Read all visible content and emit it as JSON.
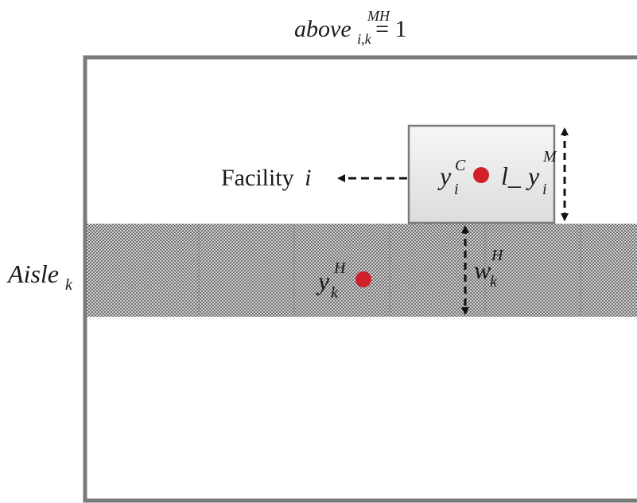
{
  "title": {
    "base": "above",
    "superscript": "MH",
    "subscript": "i,k",
    "equals": "= 1"
  },
  "facility": {
    "label_text": "Facility",
    "label_var": "i",
    "center_var": "y",
    "center_sub": "i",
    "center_sup": "C",
    "length_prefix": "l_",
    "length_var": "y",
    "length_sub": "i",
    "length_sup": "M"
  },
  "aisle": {
    "label_base": "Aisle",
    "label_sub": "k",
    "center_var": "y",
    "center_sub": "k",
    "center_sup": "H",
    "width_var": "w",
    "width_sub": "k",
    "width_sup": "H"
  },
  "colors": {
    "frame": "#7a7a7a",
    "facility_fill": "#e8e8e8",
    "facility_stroke": "#7a7a7a",
    "marker": "#d0202a",
    "arrow": "#111111",
    "aisle_dot": "#5a5a5a"
  }
}
